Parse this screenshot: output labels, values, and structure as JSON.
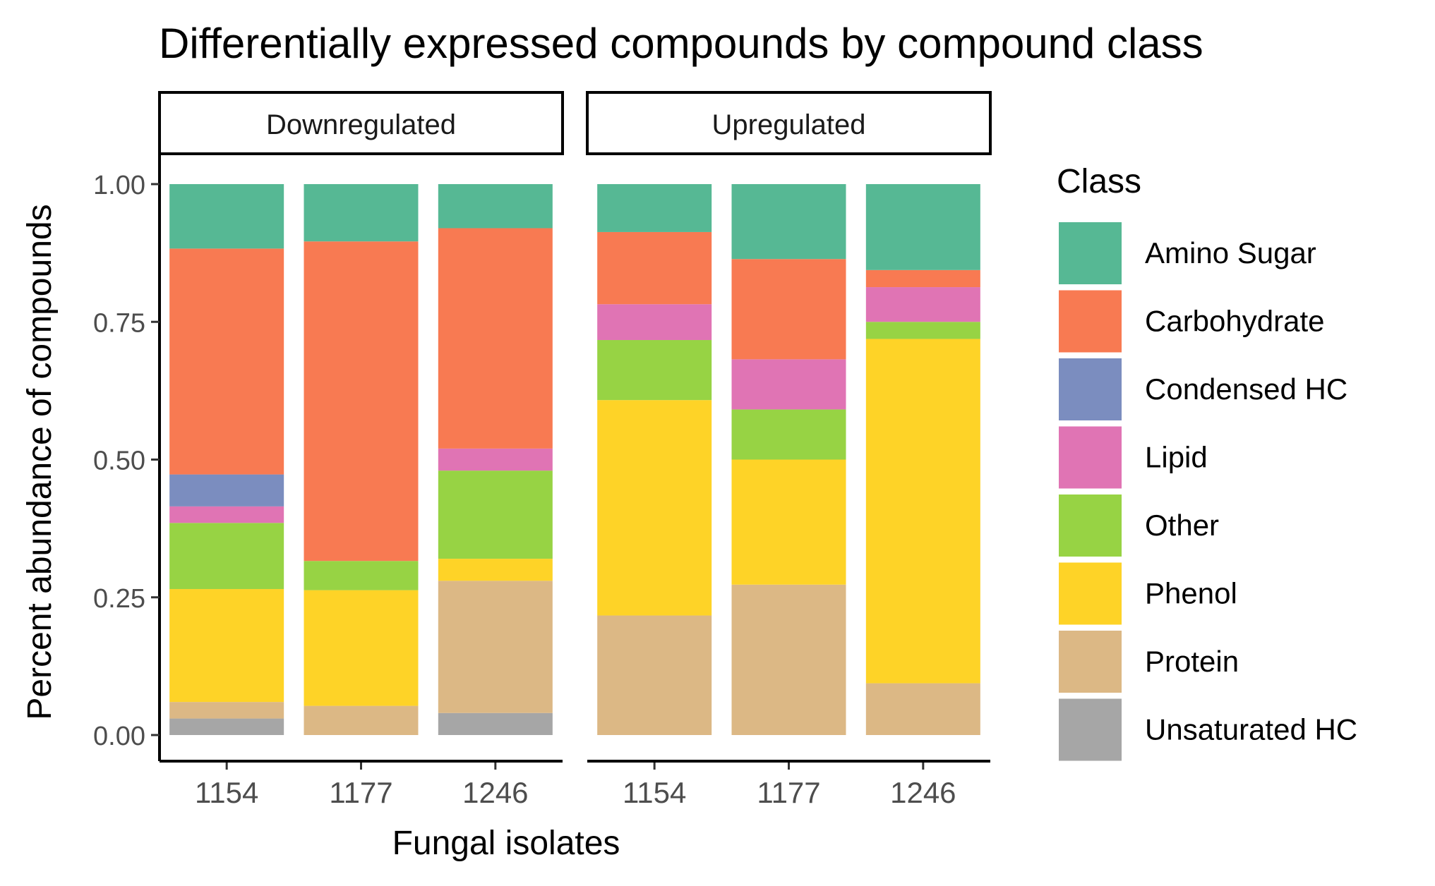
{
  "chart_data": {
    "type": "bar",
    "stacked": true,
    "title": "Differentially expressed compounds by compound class",
    "xlabel": "Fungal isolates",
    "ylabel": "Percent abundance of compounds",
    "ylim": [
      0,
      1
    ],
    "yticks": [
      "0.00",
      "0.25",
      "0.50",
      "0.75",
      "1.00"
    ],
    "ytick_values": [
      0,
      0.25,
      0.5,
      0.75,
      1.0
    ],
    "grid": false,
    "legend": {
      "title": "Class",
      "position": "right",
      "entries": [
        "Amino Sugar",
        "Carbohydrate",
        "Condensed HC",
        "Lipid",
        "Other",
        "Phenol",
        "Protein",
        "Unsaturated HC"
      ]
    },
    "colors": {
      "Amino Sugar": "#56b894",
      "Carbohydrate": "#f87a52",
      "Condensed HC": "#7b8dbf",
      "Lipid": "#e074b4",
      "Other": "#97d344",
      "Phenol": "#fed327",
      "Protein": "#dcb885",
      "Unsaturated HC": "#a6a6a6"
    },
    "stack_order_bottom_to_top": [
      "Unsaturated HC",
      "Protein",
      "Phenol",
      "Other",
      "Lipid",
      "Condensed HC",
      "Carbohydrate",
      "Amino Sugar"
    ],
    "panels": [
      {
        "label": "Downregulated",
        "categories": [
          "1154",
          "1177",
          "1246"
        ],
        "series": [
          {
            "name": "Unsaturated HC",
            "values": [
              0.03,
              0.0,
              0.04
            ]
          },
          {
            "name": "Protein",
            "values": [
              0.03,
              0.053,
              0.24
            ]
          },
          {
            "name": "Phenol",
            "values": [
              0.205,
              0.21,
              0.04
            ]
          },
          {
            "name": "Other",
            "values": [
              0.12,
              0.053,
              0.16
            ]
          },
          {
            "name": "Lipid",
            "values": [
              0.03,
              0.0,
              0.04
            ]
          },
          {
            "name": "Condensed HC",
            "values": [
              0.058,
              0.0,
              0.0
            ]
          },
          {
            "name": "Carbohydrate",
            "values": [
              0.41,
              0.58,
              0.4
            ]
          },
          {
            "name": "Amino Sugar",
            "values": [
              0.117,
              0.104,
              0.08
            ]
          }
        ]
      },
      {
        "label": "Upregulated",
        "categories": [
          "1154",
          "1177",
          "1246"
        ],
        "series": [
          {
            "name": "Unsaturated HC",
            "values": [
              0.0,
              0.0,
              0.0
            ]
          },
          {
            "name": "Protein",
            "values": [
              0.217,
              0.273,
              0.094
            ]
          },
          {
            "name": "Phenol",
            "values": [
              0.391,
              0.227,
              0.625
            ]
          },
          {
            "name": "Other",
            "values": [
              0.109,
              0.091,
              0.031
            ]
          },
          {
            "name": "Lipid",
            "values": [
              0.065,
              0.091,
              0.063
            ]
          },
          {
            "name": "Condensed HC",
            "values": [
              0.0,
              0.0,
              0.0
            ]
          },
          {
            "name": "Carbohydrate",
            "values": [
              0.131,
              0.182,
              0.031
            ]
          },
          {
            "name": "Amino Sugar",
            "values": [
              0.087,
              0.136,
              0.156
            ]
          }
        ]
      }
    ]
  }
}
